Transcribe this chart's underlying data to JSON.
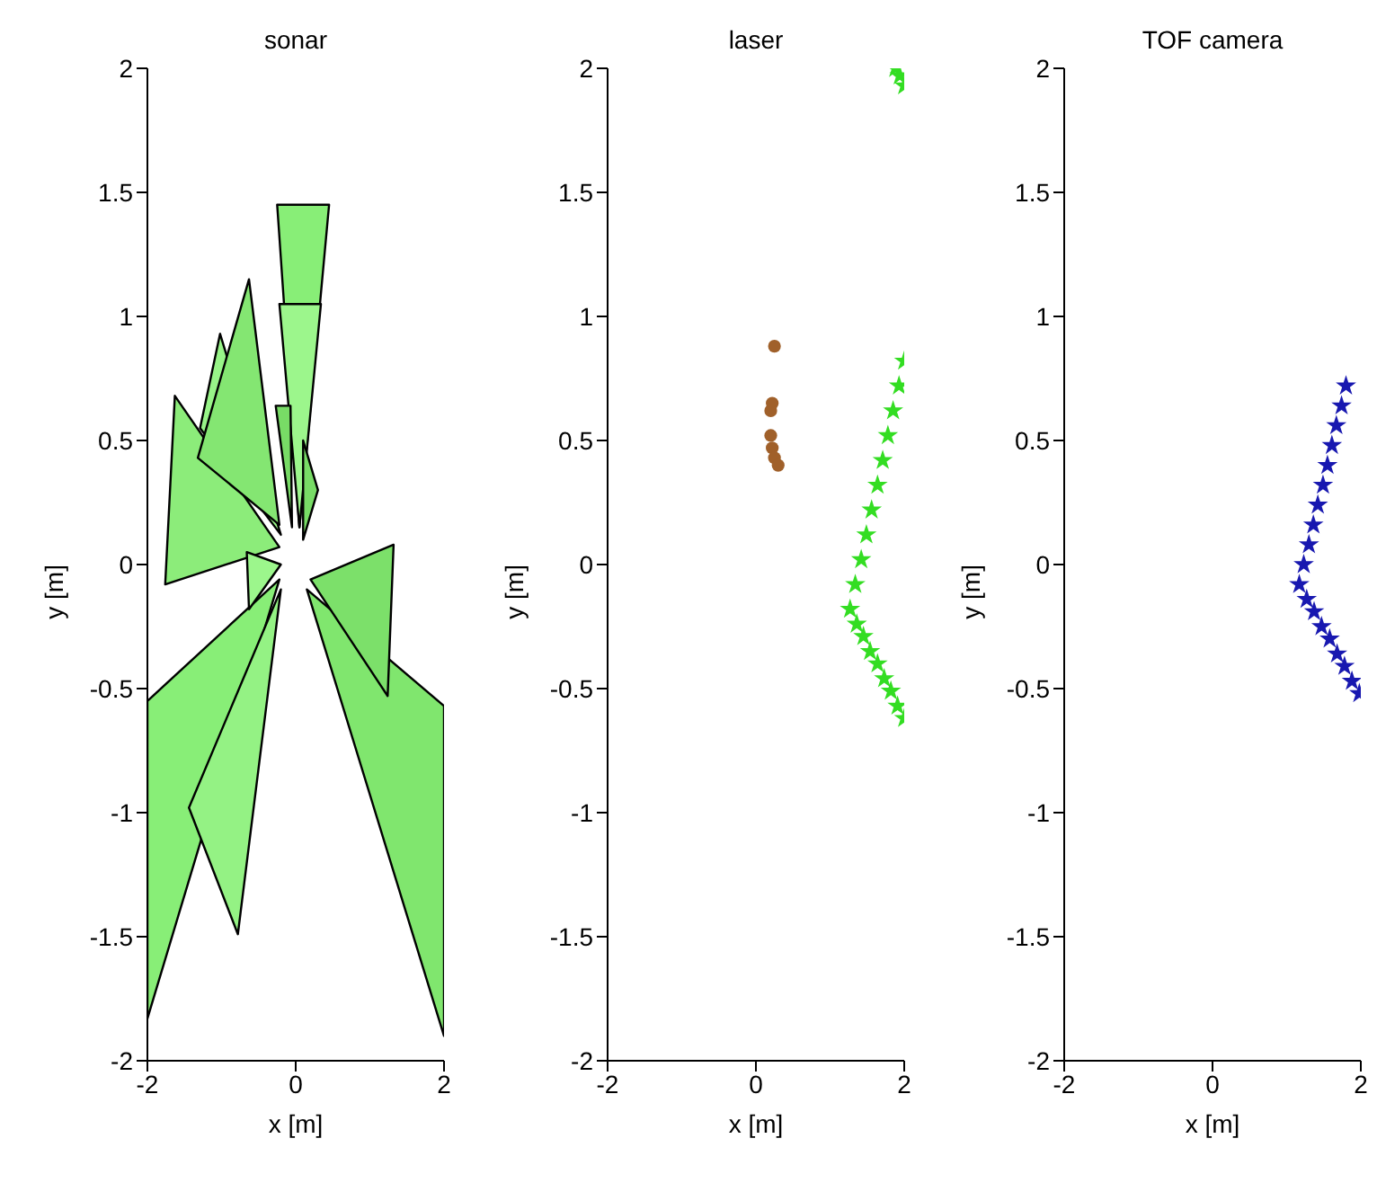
{
  "chart_data": [
    {
      "type": "area",
      "title": "sonar",
      "xlabel": "x [m]",
      "ylabel": "y [m]",
      "xlim": [
        -2,
        2
      ],
      "xticks": [
        -2,
        0,
        2
      ],
      "ylim": [
        -2,
        2
      ],
      "yticks": [
        -2,
        -1.5,
        -1,
        -0.5,
        0,
        0.5,
        1,
        1.5,
        2
      ],
      "series": [
        {
          "color": "#88ee77",
          "x": [
            -0.22,
            -2,
            -2
          ],
          "values": [
            -0.06,
            -0.55,
            -1.83
          ]
        },
        {
          "color": "#80e66e",
          "x": [
            0.15,
            2,
            2
          ],
          "values": [
            -0.1,
            -0.57,
            -1.9
          ]
        },
        {
          "color": "#94f284",
          "x": [
            -0.2,
            -1.44,
            -0.78
          ],
          "values": [
            -0.1,
            -0.98,
            -1.49
          ]
        },
        {
          "color": "#7ce06a",
          "x": [
            0.2,
            1.32,
            1.24
          ],
          "values": [
            -0.06,
            0.08,
            -0.53
          ]
        },
        {
          "color": "#8cec7a",
          "x": [
            -0.22,
            -1.63,
            -1.76
          ],
          "values": [
            0.07,
            0.68,
            -0.08
          ]
        },
        {
          "color": "#98f488",
          "x": [
            -0.2,
            -1.02,
            -1.29
          ],
          "values": [
            0.12,
            0.93,
            0.55
          ]
        },
        {
          "color": "#84e672",
          "x": [
            -0.22,
            -0.63,
            -1.32
          ],
          "values": [
            0.16,
            1.15,
            0.43
          ]
        },
        {
          "color": "#88ee77",
          "x": [
            0.05,
            -0.25,
            0.45
          ],
          "values": [
            0.15,
            1.45,
            1.45
          ]
        },
        {
          "color": "#9cf68c",
          "x": [
            0.05,
            -0.22,
            0.34
          ],
          "values": [
            0.15,
            1.05,
            1.05
          ]
        },
        {
          "color": "#78dc66",
          "x": [
            -0.05,
            -0.27,
            -0.07
          ],
          "values": [
            0.15,
            0.64,
            0.64
          ]
        },
        {
          "color": "#78dc66",
          "x": [
            0.1,
            0.3,
            0.1
          ],
          "values": [
            0.1,
            0.3,
            0.5
          ]
        },
        {
          "color": "#9cf68c",
          "x": [
            -0.2,
            -0.66,
            -0.63
          ],
          "values": [
            0.0,
            0.05,
            -0.18
          ]
        }
      ]
    },
    {
      "type": "scatter",
      "title": "laser",
      "xlabel": "x [m]",
      "ylabel": "y [m]",
      "xlim": [
        -2,
        2
      ],
      "xticks": [
        -2,
        0,
        2
      ],
      "ylim": [
        -2,
        2
      ],
      "yticks": [
        -2,
        -1.5,
        -1,
        -0.5,
        0,
        0.5,
        1,
        1.5,
        2
      ],
      "series": [
        {
          "color": "#33dd22",
          "marker": "star",
          "x": [
            1.88,
            1.94,
            2.0,
            2.0,
            1.93,
            1.85,
            1.78,
            1.71,
            1.64,
            1.56,
            1.49,
            1.42,
            1.34,
            1.27,
            1.36,
            1.45,
            1.54,
            1.64,
            1.73,
            1.82,
            1.91,
            2.0
          ],
          "values": [
            2.0,
            1.97,
            1.93,
            0.82,
            0.72,
            0.62,
            0.52,
            0.42,
            0.32,
            0.22,
            0.12,
            0.02,
            -0.08,
            -0.18,
            -0.24,
            -0.29,
            -0.35,
            -0.4,
            -0.46,
            -0.51,
            -0.57,
            -0.62
          ]
        },
        {
          "color": "#a0602a",
          "marker": "circle",
          "x": [
            0.25,
            0.22,
            0.2,
            0.2,
            0.22,
            0.25,
            0.3
          ],
          "values": [
            0.88,
            0.65,
            0.62,
            0.52,
            0.47,
            0.43,
            0.4
          ]
        }
      ]
    },
    {
      "type": "scatter",
      "title": "TOF camera",
      "xlabel": "x [m]",
      "ylabel": "y [m]",
      "xlim": [
        -2,
        2
      ],
      "xticks": [
        -2,
        0,
        2
      ],
      "ylim": [
        -2,
        2
      ],
      "yticks": [
        -2,
        -1.5,
        -1,
        -0.5,
        0,
        0.5,
        1,
        1.5,
        2
      ],
      "series": [
        {
          "color": "#1818b0",
          "marker": "star",
          "x": [
            1.8,
            1.74,
            1.67,
            1.61,
            1.55,
            1.49,
            1.42,
            1.36,
            1.3,
            1.23,
            1.17,
            1.27,
            1.37,
            1.47,
            1.58,
            1.68,
            1.78,
            1.88,
            1.98
          ],
          "values": [
            0.72,
            0.64,
            0.56,
            0.48,
            0.4,
            0.32,
            0.24,
            0.16,
            0.08,
            0,
            -0.08,
            -0.14,
            -0.19,
            -0.25,
            -0.3,
            -0.36,
            -0.41,
            -0.47,
            -0.52
          ]
        }
      ]
    }
  ]
}
